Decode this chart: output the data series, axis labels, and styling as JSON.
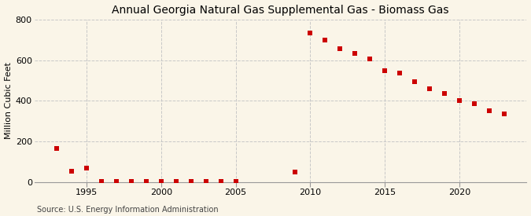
{
  "title": "Annual Georgia Natural Gas Supplemental Gas - Biomass Gas",
  "ylabel": "Million Cubic Feet",
  "source": "Source: U.S. Energy Information Administration",
  "background_color": "#faf5e8",
  "marker_color": "#cc0000",
  "years": [
    1993,
    1994,
    1995,
    1996,
    1997,
    1998,
    1999,
    2000,
    2001,
    2002,
    2003,
    2004,
    2005,
    2009,
    2010,
    2011,
    2012,
    2013,
    2014,
    2015,
    2016,
    2017,
    2018,
    2019,
    2020,
    2021,
    2022,
    2023
  ],
  "values": [
    165,
    55,
    70,
    5,
    3,
    4,
    3,
    3,
    4,
    4,
    5,
    3,
    2,
    50,
    735,
    700,
    655,
    635,
    607,
    550,
    535,
    495,
    460,
    435,
    400,
    385,
    350,
    335
  ],
  "ylim": [
    0,
    800
  ],
  "yticks": [
    0,
    200,
    400,
    600,
    800
  ],
  "xlim": [
    1991.5,
    2024.5
  ],
  "xticks": [
    1995,
    2000,
    2005,
    2010,
    2015,
    2020
  ],
  "title_fontsize": 10,
  "label_fontsize": 8,
  "tick_fontsize": 8,
  "source_fontsize": 7,
  "grid_color": "#c8c8c8",
  "grid_linestyle": "--",
  "marker_size": 4.5
}
